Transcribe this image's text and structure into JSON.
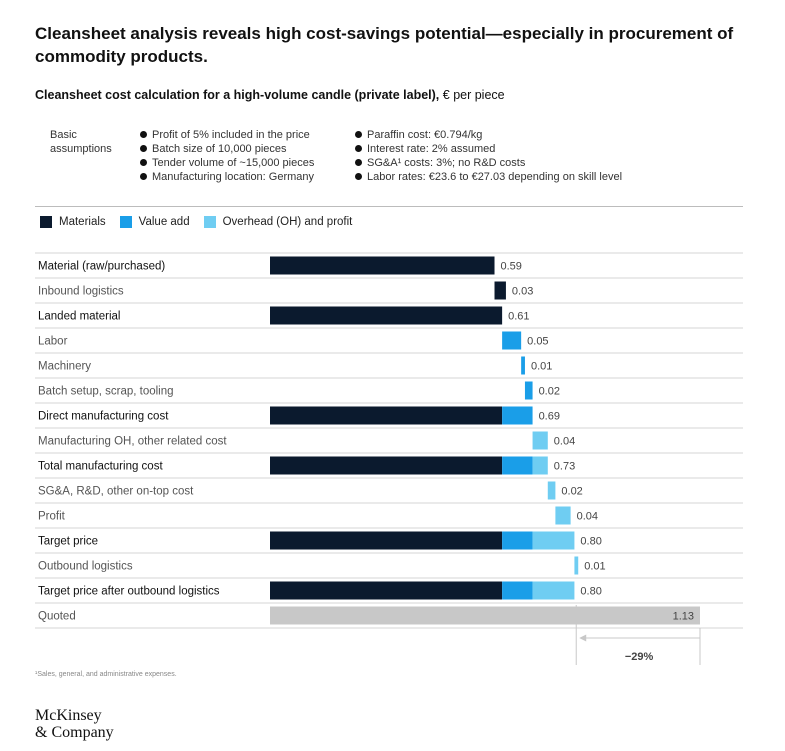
{
  "title": "Cleansheet analysis reveals high cost-savings potential—especially in procurement of commodity products.",
  "subtitle_bold": "Cleansheet cost calculation for a high-volume candle (private label),",
  "subtitle_unit": "€ per piece",
  "assumptions": {
    "label_line1": "Basic",
    "label_line2": "assumptions",
    "col1": [
      "Profit of 5% included in the price",
      "Batch size of 10,000 pieces",
      "Tender volume of ~15,000 pieces",
      "Manufacturing location: Germany"
    ],
    "col2": [
      "Paraffin cost: €0.794/kg",
      "Interest rate: 2% assumed",
      "SG&A¹ costs: 3%; no R&D costs",
      "Labor rates: €23.6 to €27.03 depending on skill level"
    ]
  },
  "legend": [
    {
      "name": "Materials",
      "color": "#0b1a2e"
    },
    {
      "name": "Value add",
      "color": "#1a9ee8"
    },
    {
      "name": "Overhead (OH) and profit",
      "color": "#6fcdf2"
    }
  ],
  "colors": {
    "materials": "#0b1a2e",
    "value_add": "#1a9ee8",
    "overhead": "#6fcdf2",
    "quoted": "#c8c8c8"
  },
  "chart_data": {
    "type": "bar",
    "subtype": "waterfall",
    "unit": "€ per piece",
    "rows": [
      {
        "label": "Material (raw/purchased)",
        "bold": true,
        "kind": "total",
        "value": 0.59,
        "value_label": "0.59",
        "segments": [
          {
            "cat": "materials",
            "value": 0.59
          }
        ]
      },
      {
        "label": "Inbound logistics",
        "bold": false,
        "kind": "step",
        "start": 0.59,
        "value": 0.03,
        "value_label": "0.03",
        "cat": "materials"
      },
      {
        "label": "Landed material",
        "bold": true,
        "kind": "total",
        "value": 0.61,
        "value_label": "0.61",
        "segments": [
          {
            "cat": "materials",
            "value": 0.61
          }
        ]
      },
      {
        "label": "Labor",
        "bold": false,
        "kind": "step",
        "start": 0.61,
        "value": 0.05,
        "value_label": "0.05",
        "cat": "value_add"
      },
      {
        "label": "Machinery",
        "bold": false,
        "kind": "step",
        "start": 0.66,
        "value": 0.01,
        "value_label": "0.01",
        "cat": "value_add"
      },
      {
        "label": "Batch setup, scrap, tooling",
        "bold": false,
        "kind": "step",
        "start": 0.67,
        "value": 0.02,
        "value_label": "0.02",
        "cat": "value_add"
      },
      {
        "label": "Direct manufacturing cost",
        "bold": true,
        "kind": "total",
        "value": 0.69,
        "value_label": "0.69",
        "segments": [
          {
            "cat": "materials",
            "value": 0.61
          },
          {
            "cat": "value_add",
            "value": 0.08
          }
        ]
      },
      {
        "label": "Manufacturing OH, other related cost",
        "bold": false,
        "kind": "step",
        "start": 0.69,
        "value": 0.04,
        "value_label": "0.04",
        "cat": "overhead"
      },
      {
        "label": "Total manufacturing cost",
        "bold": true,
        "kind": "total",
        "value": 0.73,
        "value_label": "0.73",
        "segments": [
          {
            "cat": "materials",
            "value": 0.61
          },
          {
            "cat": "value_add",
            "value": 0.08
          },
          {
            "cat": "overhead",
            "value": 0.04
          }
        ]
      },
      {
        "label": "SG&A, R&D, other on-top cost",
        "bold": false,
        "kind": "step",
        "start": 0.73,
        "value": 0.02,
        "value_label": "0.02",
        "cat": "overhead"
      },
      {
        "label": "Profit",
        "bold": false,
        "kind": "step",
        "start": 0.75,
        "value": 0.04,
        "value_label": "0.04",
        "cat": "overhead"
      },
      {
        "label": "Target price",
        "bold": true,
        "kind": "total",
        "value": 0.8,
        "value_label": "0.80",
        "segments": [
          {
            "cat": "materials",
            "value": 0.61
          },
          {
            "cat": "value_add",
            "value": 0.08
          },
          {
            "cat": "overhead",
            "value": 0.11
          }
        ]
      },
      {
        "label": "Outbound logistics",
        "bold": false,
        "kind": "step",
        "start": 0.8,
        "value": 0.01,
        "value_label": "0.01",
        "cat": "overhead"
      },
      {
        "label": "Target price after outbound logistics",
        "bold": true,
        "kind": "total",
        "value": 0.8,
        "value_label": "0.80",
        "segments": [
          {
            "cat": "materials",
            "value": 0.61
          },
          {
            "cat": "value_add",
            "value": 0.08
          },
          {
            "cat": "overhead",
            "value": 0.11
          }
        ]
      },
      {
        "label": "Quoted",
        "bold": false,
        "kind": "quoted",
        "value": 1.13,
        "value_label": "1.13",
        "segments": [
          {
            "cat": "quoted",
            "value": 1.13
          }
        ]
      }
    ],
    "xlim": [
      0,
      1.13
    ],
    "savings_label": "−29%",
    "savings_from": 0.81,
    "savings_to": 1.13
  },
  "footnote": "¹Sales, general, and administrative expenses.",
  "logo_line1": "McKinsey",
  "logo_line2": "& Company"
}
